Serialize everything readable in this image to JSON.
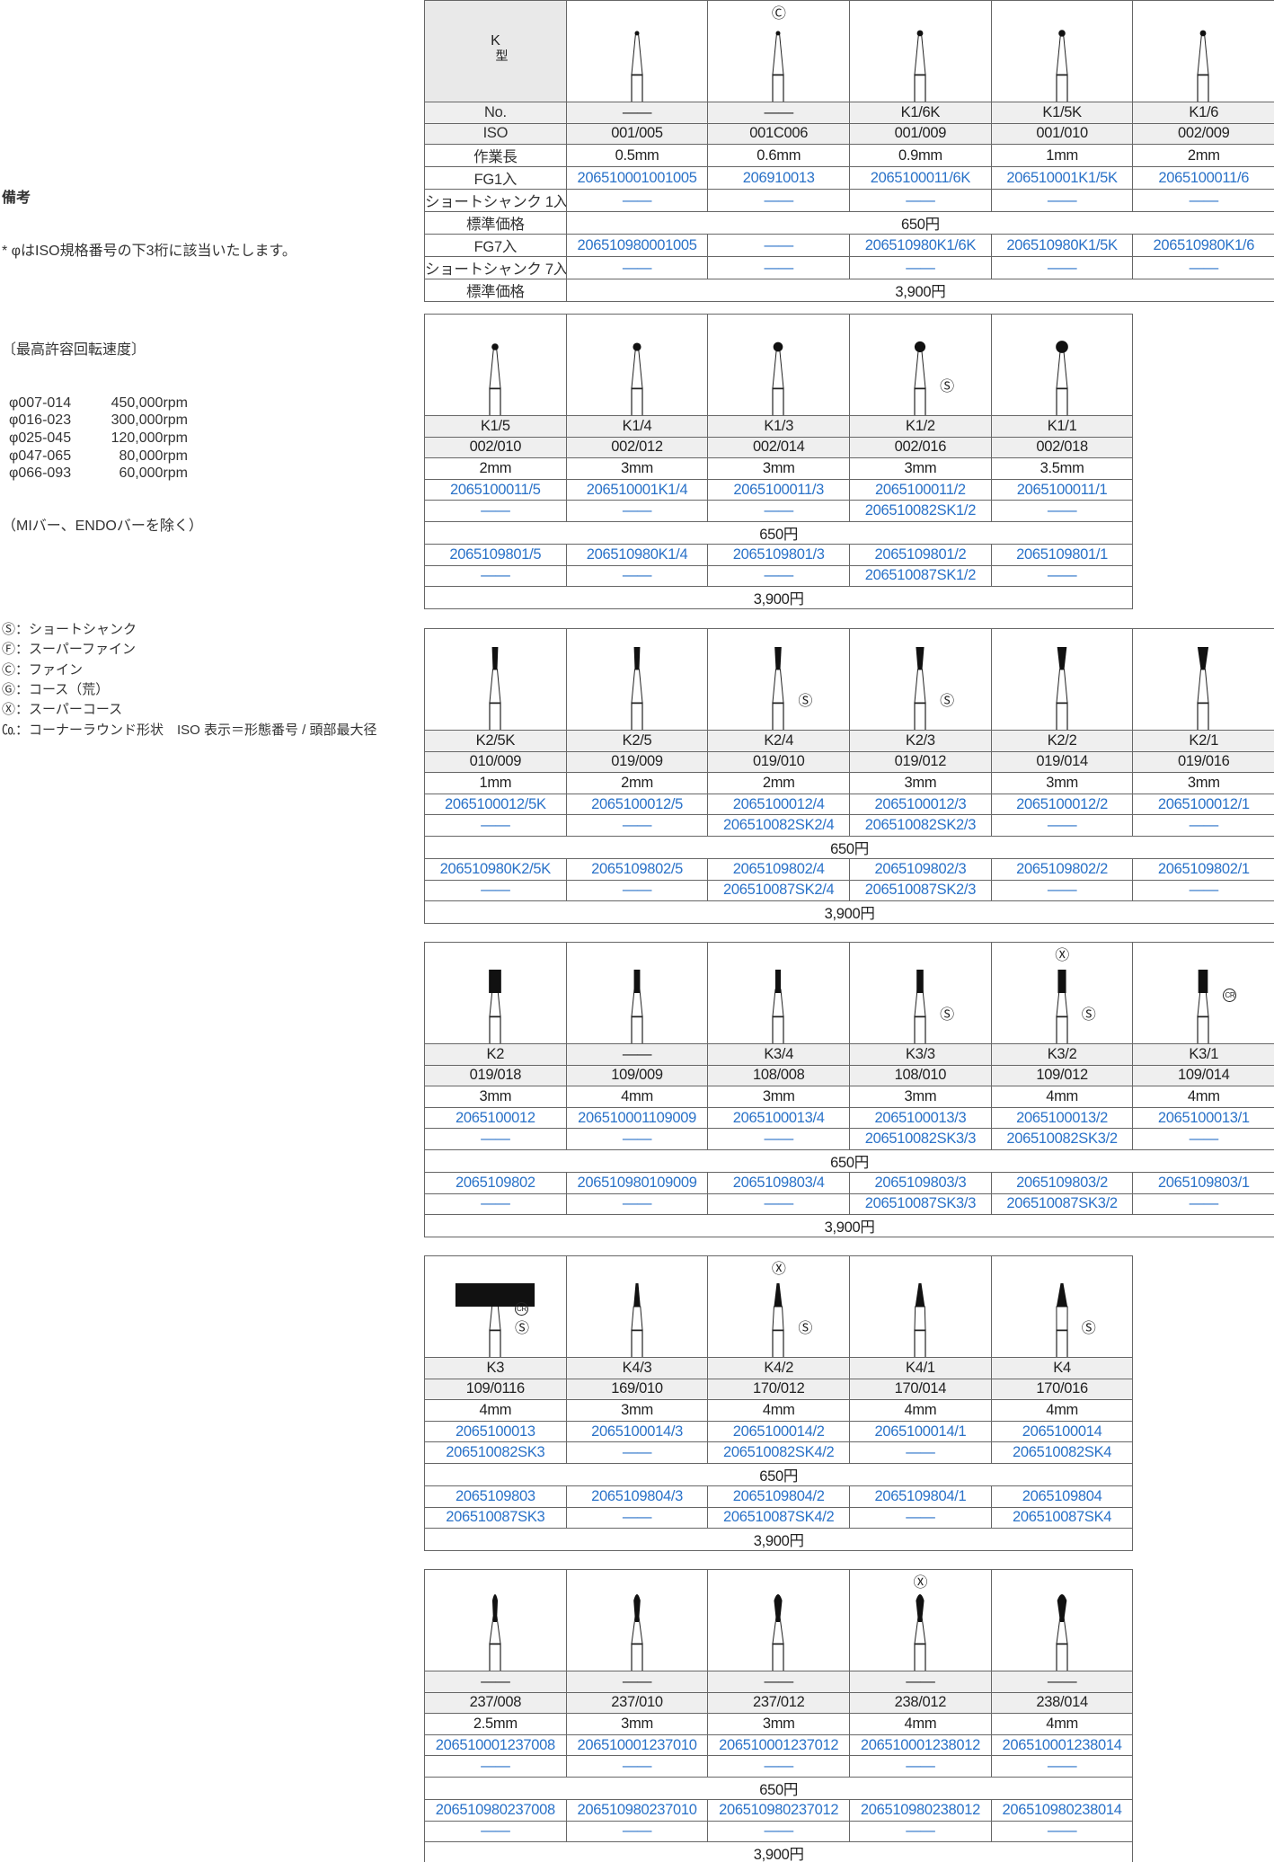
{
  "notes": {
    "title": "備考",
    "line1": "* φはISO規格番号の下3桁に該当いたします。",
    "speed_title": "〔最高許容回転速度〕",
    "speeds": [
      {
        "range": "φ007-014",
        "rpm": "450,000rpm"
      },
      {
        "range": "φ016-023",
        "rpm": "300,000rpm"
      },
      {
        "range": "φ025-045",
        "rpm": "120,000rpm"
      },
      {
        "range": "φ047-065",
        "rpm": "80,000rpm"
      },
      {
        "range": "φ066-093",
        "rpm": "60,000rpm"
      }
    ],
    "exclusion": "（MIバー、ENDOバーを除く）",
    "legend": [
      "Ⓢ：ショートシャンク",
      "Ⓕ：スーパーファイン",
      "Ⓒ：ファイン",
      "Ⓖ：コース（荒）",
      "Ⓧ：スーパーコース",
      "㏇：コーナーラウンド形状　ISO 表示＝形態番号 / 頭部最大径"
    ]
  },
  "header": {
    "type": "K",
    "type_suffix": "型"
  },
  "row_labels": [
    "No.",
    "ISO",
    "作業長",
    "FG1入",
    "ショートシャンク 1入",
    "標準価格",
    "FG7入",
    "ショートシャンク 7入",
    "標準価格"
  ],
  "colors": {
    "code_blue": "#2a72c8",
    "grey_row": "#efefef"
  },
  "tables": [
    {
      "price1": "650円",
      "price7": "3,900円",
      "products": [
        {
          "head": "ball",
          "no": "——",
          "iso": "001/005",
          "length": "0.5mm",
          "fg1": "206510001001005",
          "ss1": "——",
          "fg7": "206510980001005",
          "ss7": "——",
          "marks": []
        },
        {
          "head": "ball",
          "no": "——",
          "iso": "001C006",
          "length": "0.6mm",
          "fg1": "206910013",
          "ss1": "——",
          "fg7": "——",
          "ss7": "——",
          "marks": [
            {
              "symbol": "Ⓒ",
              "pos": "top"
            }
          ]
        },
        {
          "head": "ball",
          "no": "K1/6K",
          "iso": "001/009",
          "length": "0.9mm",
          "fg1": "2065100011/6K",
          "ss1": "——",
          "fg7": "206510980K1/6K",
          "ss7": "——",
          "marks": []
        },
        {
          "head": "ball",
          "no": "K1/5K",
          "iso": "001/010",
          "length": "1mm",
          "fg1": "206510001K1/5K",
          "ss1": "——",
          "fg7": "206510980K1/5K",
          "ss7": "——",
          "marks": []
        },
        {
          "head": "ball",
          "no": "K1/6",
          "iso": "002/009",
          "length": "2mm",
          "fg1": "2065100011/6",
          "ss1": "——",
          "fg7": "206510980K1/6",
          "ss7": "——",
          "marks": []
        }
      ]
    },
    {
      "price1": "650円",
      "price7": "3,900円",
      "products": [
        {
          "head": "ball",
          "no": "K1/5",
          "iso": "002/010",
          "length": "2mm",
          "fg1": "2065100011/5",
          "ss1": "——",
          "fg7": "2065109801/5",
          "ss7": "——",
          "marks": []
        },
        {
          "head": "ball",
          "no": "K1/4",
          "iso": "002/012",
          "length": "3mm",
          "fg1": "206510001K1/4",
          "ss1": "——",
          "fg7": "206510980K1/4",
          "ss7": "——",
          "marks": []
        },
        {
          "head": "ball",
          "no": "K1/3",
          "iso": "002/014",
          "length": "3mm",
          "fg1": "2065100011/3",
          "ss1": "——",
          "fg7": "2065109801/3",
          "ss7": "——",
          "marks": []
        },
        {
          "head": "ball",
          "no": "K1/2",
          "iso": "002/016",
          "length": "3mm",
          "fg1": "2065100011/2",
          "ss1": "206510082SK1/2",
          "fg7": "2065109801/2",
          "ss7": "206510087SK1/2",
          "marks": [
            {
              "symbol": "Ⓢ",
              "pos": "right"
            }
          ]
        },
        {
          "head": "ball",
          "no": "K1/1",
          "iso": "002/018",
          "length": "3.5mm",
          "fg1": "2065100011/1",
          "ss1": "——",
          "fg7": "2065109801/1",
          "ss7": "——",
          "marks": []
        }
      ]
    },
    {
      "price1": "650円",
      "price7": "3,900円",
      "products": [
        {
          "head": "inverted-cone",
          "no": "K2/5K",
          "iso": "010/009",
          "length": "1mm",
          "fg1": "2065100012/5K",
          "ss1": "——",
          "fg7": "206510980K2/5K",
          "ss7": "——",
          "marks": []
        },
        {
          "head": "inverted-cone",
          "no": "K2/5",
          "iso": "019/009",
          "length": "2mm",
          "fg1": "2065100012/5",
          "ss1": "——",
          "fg7": "2065109802/5",
          "ss7": "——",
          "marks": []
        },
        {
          "head": "inverted-cone",
          "no": "K2/4",
          "iso": "019/010",
          "length": "2mm",
          "fg1": "2065100012/4",
          "ss1": "206510082SK2/4",
          "fg7": "2065109802/4",
          "ss7": "206510087SK2/4",
          "marks": [
            {
              "symbol": "Ⓢ",
              "pos": "right"
            }
          ]
        },
        {
          "head": "inverted-cone",
          "no": "K2/3",
          "iso": "019/012",
          "length": "3mm",
          "fg1": "2065100012/3",
          "ss1": "206510082SK2/3",
          "fg7": "2065109802/3",
          "ss7": "206510087SK2/3",
          "marks": [
            {
              "symbol": "Ⓢ",
              "pos": "right"
            }
          ]
        },
        {
          "head": "inverted-cone",
          "no": "K2/2",
          "iso": "019/014",
          "length": "3mm",
          "fg1": "2065100012/2",
          "ss1": "——",
          "fg7": "2065109802/2",
          "ss7": "——",
          "marks": []
        },
        {
          "head": "inverted-cone",
          "no": "K2/1",
          "iso": "019/016",
          "length": "3mm",
          "fg1": "2065100012/1",
          "ss1": "——",
          "fg7": "2065109802/1",
          "ss7": "——",
          "marks": []
        }
      ]
    },
    {
      "price1": "650円",
      "price7": "3,900円",
      "products": [
        {
          "head": "cylinder",
          "no": "K2",
          "iso": "019/018",
          "length": "3mm",
          "fg1": "2065100012",
          "ss1": "——",
          "fg7": "2065109802",
          "ss7": "——",
          "marks": []
        },
        {
          "head": "cylinder",
          "no": "——",
          "iso": "109/009",
          "length": "4mm",
          "fg1": "206510001109009",
          "ss1": "——",
          "fg7": "206510980109009",
          "ss7": "——",
          "marks": []
        },
        {
          "head": "cylinder",
          "no": "K3/4",
          "iso": "108/008",
          "length": "3mm",
          "fg1": "2065100013/4",
          "ss1": "——",
          "fg7": "2065109803/4",
          "ss7": "——",
          "marks": []
        },
        {
          "head": "cylinder",
          "no": "K3/3",
          "iso": "108/010",
          "length": "3mm",
          "fg1": "2065100013/3",
          "ss1": "206510082SK3/3",
          "fg7": "2065109803/3",
          "ss7": "206510087SK3/3",
          "marks": [
            {
              "symbol": "Ⓢ",
              "pos": "right"
            }
          ]
        },
        {
          "head": "cylinder",
          "no": "K3/2",
          "iso": "109/012",
          "length": "4mm",
          "fg1": "2065100013/2",
          "ss1": "206510082SK3/2",
          "fg7": "2065109803/2",
          "ss7": "206510087SK3/2",
          "marks": [
            {
              "symbol": "Ⓧ",
              "pos": "top"
            },
            {
              "symbol": "Ⓢ",
              "pos": "right"
            }
          ]
        },
        {
          "head": "cylinder",
          "no": "K3/1",
          "iso": "109/014",
          "length": "4mm",
          "fg1": "2065100013/1",
          "ss1": "——",
          "fg7": "2065109803/1",
          "ss7": "——",
          "marks": [
            {
              "symbol": "CR",
              "pos": "right2"
            }
          ]
        }
      ]
    },
    {
      "price1": "650円",
      "price7": "3,900円",
      "products": [
        {
          "head": "cylinder",
          "no": "K3",
          "iso": "109/0116",
          "length": "4mm",
          "fg1": "2065100013",
          "ss1": "206510082SK3",
          "fg7": "2065109803",
          "ss7": "206510087SK3",
          "marks": [
            {
              "symbol": "CR",
              "pos": "right2"
            },
            {
              "symbol": "Ⓢ",
              "pos": "right"
            }
          ]
        },
        {
          "head": "taper",
          "no": "K4/3",
          "iso": "169/010",
          "length": "3mm",
          "fg1": "2065100014/3",
          "ss1": "——",
          "fg7": "2065109804/3",
          "ss7": "——",
          "marks": []
        },
        {
          "head": "taper",
          "no": "K4/2",
          "iso": "170/012",
          "length": "4mm",
          "fg1": "2065100014/2",
          "ss1": "206510082SK4/2",
          "fg7": "2065109804/2",
          "ss7": "206510087SK4/2",
          "marks": [
            {
              "symbol": "Ⓧ",
              "pos": "top"
            },
            {
              "symbol": "Ⓢ",
              "pos": "right"
            }
          ]
        },
        {
          "head": "taper",
          "no": "K4/1",
          "iso": "170/014",
          "length": "4mm",
          "fg1": "2065100014/1",
          "ss1": "——",
          "fg7": "2065109804/1",
          "ss7": "——",
          "marks": []
        },
        {
          "head": "taper",
          "no": "K4",
          "iso": "170/016",
          "length": "4mm",
          "fg1": "2065100014",
          "ss1": "206510082SK4",
          "fg7": "2065109804",
          "ss7": "206510087SK4",
          "marks": [
            {
              "symbol": "Ⓢ",
              "pos": "right"
            }
          ]
        }
      ]
    },
    {
      "price1": "650円",
      "price7": "3,900円",
      "products": [
        {
          "head": "pear",
          "no": "——",
          "iso": "237/008",
          "length": "2.5mm",
          "fg1": "206510001237008",
          "ss1": "——",
          "fg7": "206510980237008",
          "ss7": "——",
          "marks": []
        },
        {
          "head": "pear",
          "no": "——",
          "iso": "237/010",
          "length": "3mm",
          "fg1": "206510001237010",
          "ss1": "——",
          "fg7": "206510980237010",
          "ss7": "——",
          "marks": []
        },
        {
          "head": "pear",
          "no": "——",
          "iso": "237/012",
          "length": "3mm",
          "fg1": "206510001237012",
          "ss1": "——",
          "fg7": "206510980237012",
          "ss7": "——",
          "marks": []
        },
        {
          "head": "pear",
          "no": "——",
          "iso": "238/012",
          "length": "4mm",
          "fg1": "206510001238012",
          "ss1": "——",
          "fg7": "206510980238012",
          "ss7": "——",
          "marks": [
            {
              "symbol": "Ⓧ",
              "pos": "top"
            }
          ]
        },
        {
          "head": "pear",
          "no": "——",
          "iso": "238/014",
          "length": "4mm",
          "fg1": "206510001238014",
          "ss1": "——",
          "fg7": "206510980238014",
          "ss7": "——",
          "marks": []
        }
      ]
    }
  ]
}
